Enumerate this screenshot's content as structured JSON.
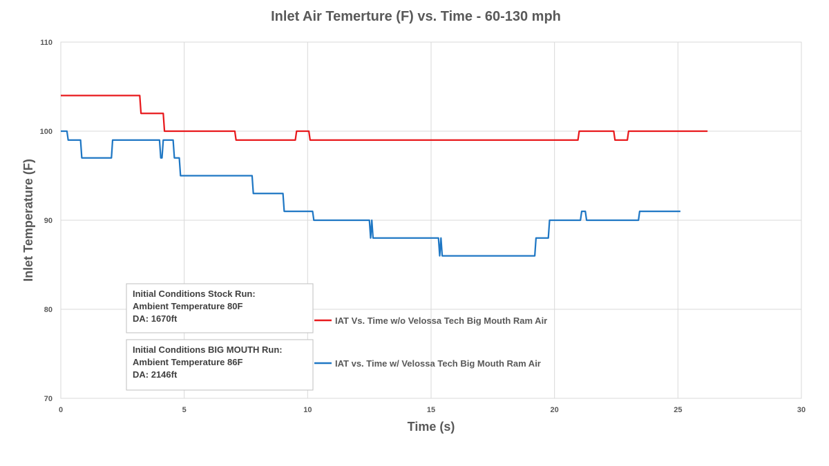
{
  "chart_data": {
    "type": "line",
    "title": "Inlet Air Temerture (F) vs. Time  - 60-130 mph",
    "xlabel": "Time (s)",
    "ylabel": "Inlet Temperature (F)",
    "xlim": [
      0,
      30
    ],
    "ylim": [
      70,
      110
    ],
    "x_ticks": [
      "0",
      "5",
      "10",
      "15",
      "20",
      "25",
      "30"
    ],
    "y_ticks": [
      "70",
      "80",
      "90",
      "100",
      "110"
    ],
    "grid": true,
    "series": [
      {
        "name": "IAT Vs. Time w/o Velossa Tech Big Mouth Ram Air",
        "color": "#e8191c",
        "points": [
          [
            0,
            104
          ],
          [
            3.2,
            104
          ],
          [
            3.25,
            102
          ],
          [
            4.15,
            102
          ],
          [
            4.2,
            100
          ],
          [
            7.05,
            100
          ],
          [
            7.1,
            99
          ],
          [
            9.5,
            99
          ],
          [
            9.55,
            100
          ],
          [
            10.05,
            100
          ],
          [
            10.1,
            99
          ],
          [
            20.95,
            99
          ],
          [
            21.0,
            100
          ],
          [
            22.4,
            100
          ],
          [
            22.45,
            99
          ],
          [
            22.95,
            99
          ],
          [
            23.0,
            100
          ],
          [
            26.2,
            100
          ]
        ]
      },
      {
        "name": "IAT vs. Time w/ Velossa Tech Big Mouth Ram Air",
        "color": "#1f77c4",
        "points": [
          [
            0,
            100
          ],
          [
            0.25,
            100
          ],
          [
            0.3,
            99
          ],
          [
            0.8,
            99
          ],
          [
            0.85,
            97
          ],
          [
            2.05,
            97
          ],
          [
            2.1,
            99
          ],
          [
            4.0,
            99
          ],
          [
            4.05,
            97
          ],
          [
            4.1,
            97
          ],
          [
            4.15,
            99
          ],
          [
            4.55,
            99
          ],
          [
            4.6,
            97
          ],
          [
            4.8,
            97
          ],
          [
            4.85,
            95
          ],
          [
            7.75,
            95
          ],
          [
            7.8,
            93
          ],
          [
            9.0,
            93
          ],
          [
            9.05,
            91
          ],
          [
            10.2,
            91
          ],
          [
            10.25,
            90
          ],
          [
            12.5,
            90
          ],
          [
            12.55,
            88
          ],
          [
            12.6,
            90
          ],
          [
            12.65,
            88
          ],
          [
            15.3,
            88
          ],
          [
            15.35,
            86
          ],
          [
            15.4,
            88
          ],
          [
            15.45,
            86
          ],
          [
            19.2,
            86
          ],
          [
            19.25,
            88
          ],
          [
            19.75,
            88
          ],
          [
            19.8,
            90
          ],
          [
            21.05,
            90
          ],
          [
            21.1,
            91
          ],
          [
            21.25,
            91
          ],
          [
            21.3,
            90
          ],
          [
            23.4,
            90
          ],
          [
            23.45,
            91
          ],
          [
            25.1,
            91
          ]
        ]
      }
    ],
    "annotations": [
      {
        "name": "stock-conditions",
        "lines": [
          "Initial Conditions Stock Run:",
          "Ambient Temperature 80F",
          "DA: 1670ft"
        ]
      },
      {
        "name": "big-mouth-conditions",
        "lines": [
          "Initial Conditions BIG MOUTH Run:",
          "Ambient Temperature 86F",
          "DA: 2146ft"
        ]
      }
    ]
  }
}
